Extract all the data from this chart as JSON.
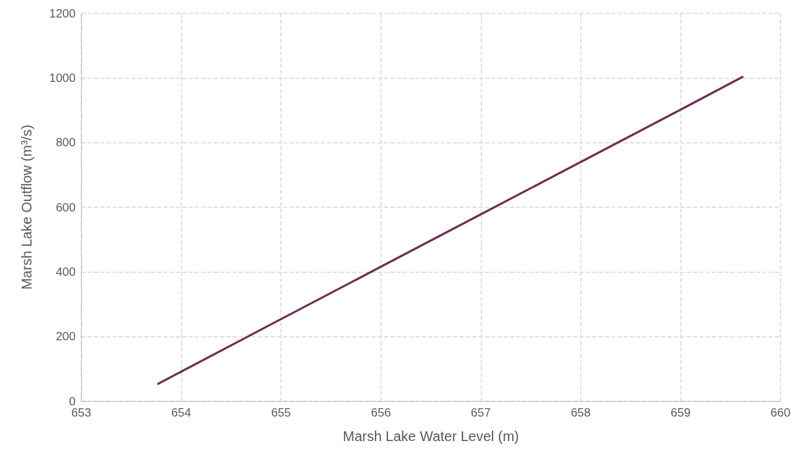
{
  "chart_data": {
    "type": "line",
    "xlabel": "Marsh Lake Water Level (m)",
    "ylabel": "Marsh Lake Outflow (m³/s)",
    "series": [
      {
        "color": "#6b2d52",
        "x": [
          653.77,
          655,
          656,
          657,
          658,
          659,
          659.62
        ],
        "values": [
          54,
          254,
          416,
          578,
          740,
          902,
          1003
        ]
      }
    ],
    "xlim": [
      653,
      660
    ],
    "xticks": [
      653,
      654,
      655,
      656,
      657,
      658,
      659,
      660
    ],
    "ylim": [
      0,
      1200
    ],
    "yticks": [
      0,
      200,
      400,
      600,
      800,
      1000,
      1200
    ],
    "grid": true,
    "marker": "none",
    "line_style": "solid"
  }
}
